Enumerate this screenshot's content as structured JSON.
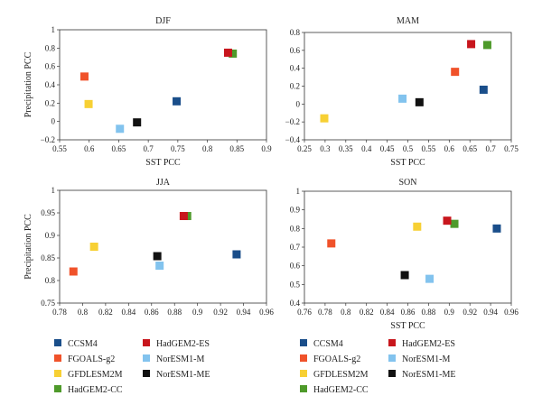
{
  "models": [
    {
      "name": "CCSM4",
      "color": "#1a4e8a"
    },
    {
      "name": "FGOALS-g2",
      "color": "#f0522a"
    },
    {
      "name": "GFDLESM2M",
      "color": "#f7d034"
    },
    {
      "name": "HadGEM2-CC",
      "color": "#4e9a2a"
    },
    {
      "name": "HadGEM2-ES",
      "color": "#c8161d"
    },
    {
      "name": "NorESM1-M",
      "color": "#82c3ee"
    },
    {
      "name": "NorESM1-ME",
      "color": "#111111"
    }
  ],
  "chart_data": [
    {
      "type": "scatter",
      "title": "DJF",
      "xlabel": "SST PCC",
      "ylabel": "Precipitation PCC",
      "xlim": [
        0.55,
        0.9
      ],
      "ylim": [
        -0.2,
        1.0
      ],
      "xticks": [
        "0.55",
        "0.6",
        "0.65",
        "0.7",
        "0.75",
        "0.8",
        "0.85",
        "0.9"
      ],
      "yticks": [
        "−0.2",
        "0",
        "0.2",
        "0.4",
        "0.6",
        "0.8",
        "1"
      ],
      "points": [
        {
          "model": "CCSM4",
          "x": 0.748,
          "y": 0.22
        },
        {
          "model": "FGOALS-g2",
          "x": 0.592,
          "y": 0.49
        },
        {
          "model": "GFDLESM2M",
          "x": 0.599,
          "y": 0.19
        },
        {
          "model": "HadGEM2-CC",
          "x": 0.843,
          "y": 0.74
        },
        {
          "model": "HadGEM2-ES",
          "x": 0.835,
          "y": 0.75
        },
        {
          "model": "NorESM1-M",
          "x": 0.652,
          "y": -0.08
        },
        {
          "model": "NorESM1-ME",
          "x": 0.681,
          "y": -0.01
        }
      ]
    },
    {
      "type": "scatter",
      "title": "MAM",
      "xlabel": "SST PCC",
      "ylabel": "",
      "xlim": [
        0.25,
        0.75
      ],
      "ylim": [
        -0.4,
        0.8
      ],
      "xticks": [
        "0.25",
        "0.3",
        "0.35",
        "0.4",
        "0.45",
        "0.5",
        "0.55",
        "0.6",
        "0.65",
        "0.7",
        "0.75"
      ],
      "yticks": [
        "−0.4",
        "−0.2",
        "0",
        "0.2",
        "0.4",
        "0.6",
        "0.8"
      ],
      "points": [
        {
          "model": "CCSM4",
          "x": 0.683,
          "y": 0.16
        },
        {
          "model": "FGOALS-g2",
          "x": 0.614,
          "y": 0.36
        },
        {
          "model": "GFDLESM2M",
          "x": 0.298,
          "y": -0.16
        },
        {
          "model": "HadGEM2-CC",
          "x": 0.692,
          "y": 0.66
        },
        {
          "model": "HadGEM2-ES",
          "x": 0.653,
          "y": 0.67
        },
        {
          "model": "NorESM1-M",
          "x": 0.487,
          "y": 0.06
        },
        {
          "model": "NorESM1-ME",
          "x": 0.528,
          "y": 0.02
        }
      ]
    },
    {
      "type": "scatter",
      "title": "JJA",
      "xlabel": "",
      "ylabel": "Precipitation PCC",
      "xlim": [
        0.78,
        0.96
      ],
      "ylim": [
        0.75,
        1.0
      ],
      "xticks": [
        "0.78",
        "0.8",
        "0.82",
        "0.84",
        "0.86",
        "0.88",
        "0.9",
        "0.92",
        "0.94",
        "0.96"
      ],
      "yticks": [
        "0.75",
        "0.8",
        "0.85",
        "0.9",
        "0.95",
        "1"
      ],
      "points": [
        {
          "model": "CCSM4",
          "x": 0.934,
          "y": 0.858
        },
        {
          "model": "FGOALS-g2",
          "x": 0.792,
          "y": 0.82
        },
        {
          "model": "GFDLESM2M",
          "x": 0.81,
          "y": 0.875
        },
        {
          "model": "HadGEM2-CC",
          "x": 0.891,
          "y": 0.943
        },
        {
          "model": "HadGEM2-ES",
          "x": 0.888,
          "y": 0.943
        },
        {
          "model": "NorESM1-M",
          "x": 0.867,
          "y": 0.833
        },
        {
          "model": "NorESM1-ME",
          "x": 0.865,
          "y": 0.854
        }
      ]
    },
    {
      "type": "scatter",
      "title": "SON",
      "xlabel": "SST PCC",
      "ylabel": "",
      "xlim": [
        0.76,
        0.96
      ],
      "ylim": [
        0.4,
        1.0
      ],
      "xticks": [
        "0.76",
        "0.78",
        "0.8",
        "0.82",
        "0.84",
        "0.86",
        "0.88",
        "0.9",
        "0.92",
        "0.94",
        "0.96"
      ],
      "yticks": [
        "0.4",
        "0.5",
        "0.6",
        "0.7",
        "0.8",
        "0.9",
        "1"
      ],
      "points": [
        {
          "model": "CCSM4",
          "x": 0.946,
          "y": 0.8
        },
        {
          "model": "FGOALS-g2",
          "x": 0.786,
          "y": 0.72
        },
        {
          "model": "GFDLESM2M",
          "x": 0.869,
          "y": 0.81
        },
        {
          "model": "HadGEM2-CC",
          "x": 0.905,
          "y": 0.825
        },
        {
          "model": "HadGEM2-ES",
          "x": 0.898,
          "y": 0.842
        },
        {
          "model": "NorESM1-M",
          "x": 0.881,
          "y": 0.53
        },
        {
          "model": "NorESM1-ME",
          "x": 0.857,
          "y": 0.55
        }
      ]
    }
  ]
}
